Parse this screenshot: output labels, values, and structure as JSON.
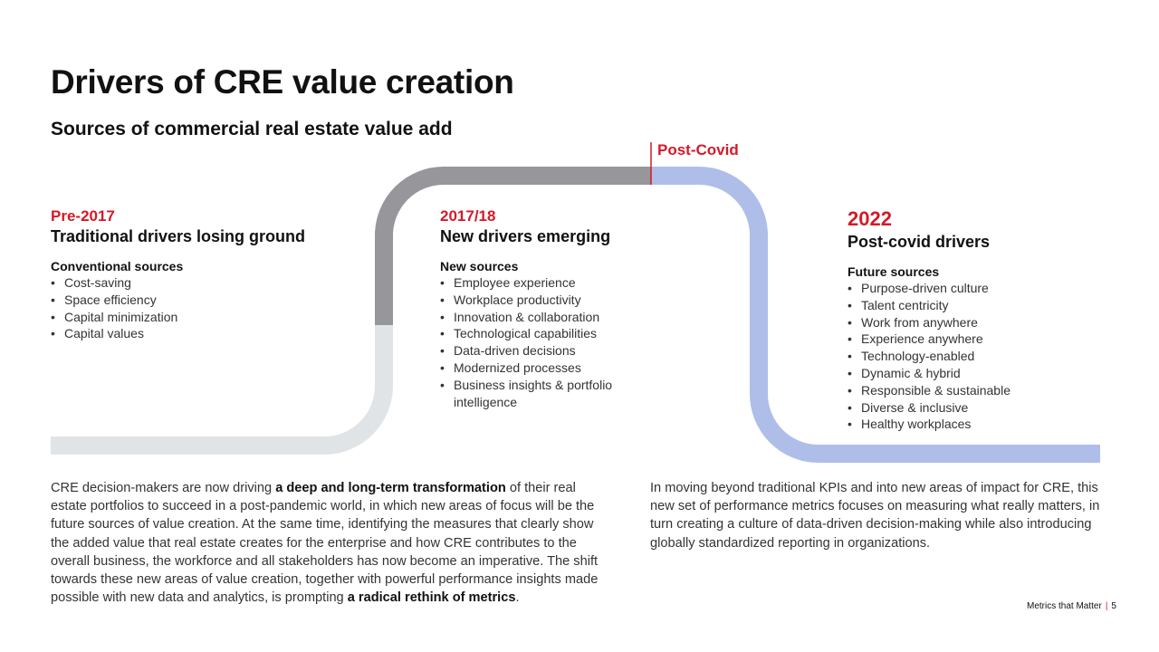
{
  "title": "Drivers of CRE value creation",
  "subtitle": "Sources of commercial real estate value add",
  "post_covid_label": "Post-Covid",
  "colors": {
    "accent_red": "#d41a28",
    "path_light_grey": "#e1e4e6",
    "path_dark_grey": "#96969b",
    "path_blue": "#aebee9"
  },
  "columns": {
    "pre2017": {
      "year": "Pre-2017",
      "heading": "Traditional drivers losing ground",
      "sub": "Conventional sources",
      "items": [
        "Cost-saving",
        "Space efficiency",
        "Capital minimization",
        "Capital values"
      ]
    },
    "y1718": {
      "year": "2017/18",
      "heading": "New drivers emerging",
      "sub": "New sources",
      "items": [
        "Employee experience",
        "Workplace productivity",
        "Innovation & collaboration",
        "Technological capabilities",
        "Data-driven decisions",
        "Modernized processes",
        "Business insights & portfolio intelligence"
      ]
    },
    "y2022": {
      "year": "2022",
      "heading": "Post-covid drivers",
      "sub": "Future sources",
      "items": [
        "Purpose-driven culture",
        "Talent centricity",
        "Work from anywhere",
        "Experience anywhere",
        "Technology-enabled",
        "Dynamic & hybrid",
        "Responsible & sustainable",
        "Diverse & inclusive",
        "Healthy workplaces"
      ]
    }
  },
  "paragraphs": {
    "left": {
      "p1": "CRE decision-makers are now driving ",
      "b1": "a deep and long-term transformation",
      "p2": " of their real estate portfolios to succeed in a post-pandemic world, in which new areas of focus will be the future sources of value creation. At the same time, identifying the measures that clearly show the added value that real estate creates for the enterprise and how CRE contributes to the overall business, the workforce and all stakeholders has now become an imperative. The shift towards these new areas of value creation, together with powerful performance insights made possible with new data and analytics, is prompting ",
      "b2": "a radical rethink of metrics",
      "p3": "."
    },
    "right": "In moving beyond traditional KPIs and into new areas of impact for CRE, this new set of performance metrics focuses on measuring what really matters, in turn creating a culture of data-driven decision-making while also introducing globally standardized reporting in organizations."
  },
  "footer": {
    "text": "Metrics that Matter",
    "separator": "|",
    "page": "5"
  }
}
